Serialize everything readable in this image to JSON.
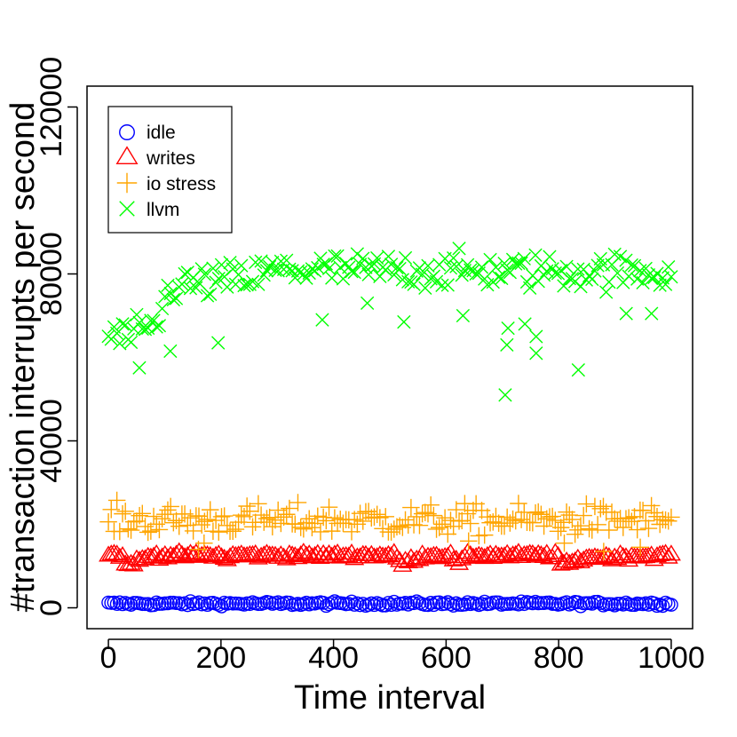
{
  "chart_data": {
    "type": "scatter",
    "xlabel": "Time interval",
    "ylabel": "#transaction interrupts per second",
    "xlim": [
      -38,
      1038
    ],
    "ylim": [
      -5000,
      125000
    ],
    "xticks": [
      0,
      200,
      400,
      600,
      800,
      1000
    ],
    "yticks": [
      0,
      40000,
      80000,
      120000
    ],
    "xtick_labels": [
      "0",
      "200",
      "400",
      "600",
      "800",
      "1000"
    ],
    "ytick_labels": [
      "0",
      "40000",
      "80000",
      "120000"
    ],
    "grid": false,
    "legend_position": "top-left",
    "n_points_per_series": 200,
    "series": [
      {
        "name": "idle",
        "marker": "circle",
        "color": "#0000ff",
        "profile": [
          [
            0,
            1000
          ],
          [
            1000,
            1000
          ]
        ],
        "noise": 350,
        "outliers": []
      },
      {
        "name": "writes",
        "marker": "triangle",
        "color": "#ff0000",
        "profile": [
          [
            0,
            13000
          ],
          [
            25,
            12500
          ],
          [
            26,
            10000
          ],
          [
            60,
            11500
          ],
          [
            80,
            12500
          ],
          [
            200,
            12500
          ],
          [
            205,
            11500
          ],
          [
            220,
            12500
          ],
          [
            510,
            12500
          ],
          [
            520,
            10500
          ],
          [
            560,
            12500
          ],
          [
            610,
            12500
          ],
          [
            620,
            10500
          ],
          [
            640,
            12500
          ],
          [
            800,
            12500
          ],
          [
            805,
            10000
          ],
          [
            850,
            12000
          ],
          [
            1000,
            12500
          ]
        ],
        "noise": 500,
        "outliers": []
      },
      {
        "name": "io stress",
        "marker": "plus",
        "color": "#ffa500",
        "profile": [
          [
            0,
            21000
          ],
          [
            1000,
            21000
          ]
        ],
        "noise": 2600,
        "outliers": [
          [
            160,
            14000
          ],
          [
            880,
            13500
          ],
          [
            945,
            14500
          ],
          [
            170,
            15500
          ],
          [
            640,
            16000
          ],
          [
            810,
            15500
          ]
        ]
      },
      {
        "name": "llvm",
        "marker": "x",
        "color": "#00ff00",
        "profile": [
          [
            0,
            65000
          ],
          [
            60,
            65000
          ],
          [
            90,
            69000
          ],
          [
            110,
            77000
          ],
          [
            250,
            79000
          ],
          [
            300,
            81000
          ],
          [
            1000,
            80500
          ]
        ],
        "noise": 3000,
        "outliers": [
          [
            55,
            57500
          ],
          [
            110,
            61500
          ],
          [
            195,
            63500
          ],
          [
            705,
            51000
          ],
          [
            708,
            63000
          ],
          [
            710,
            67000
          ],
          [
            740,
            68000
          ],
          [
            760,
            61000
          ],
          [
            760,
            65000
          ],
          [
            835,
            57000
          ],
          [
            630,
            70000
          ],
          [
            460,
            73000
          ],
          [
            380,
            69000
          ],
          [
            525,
            68500
          ],
          [
            965,
            70500
          ],
          [
            920,
            70500
          ]
        ]
      }
    ]
  }
}
